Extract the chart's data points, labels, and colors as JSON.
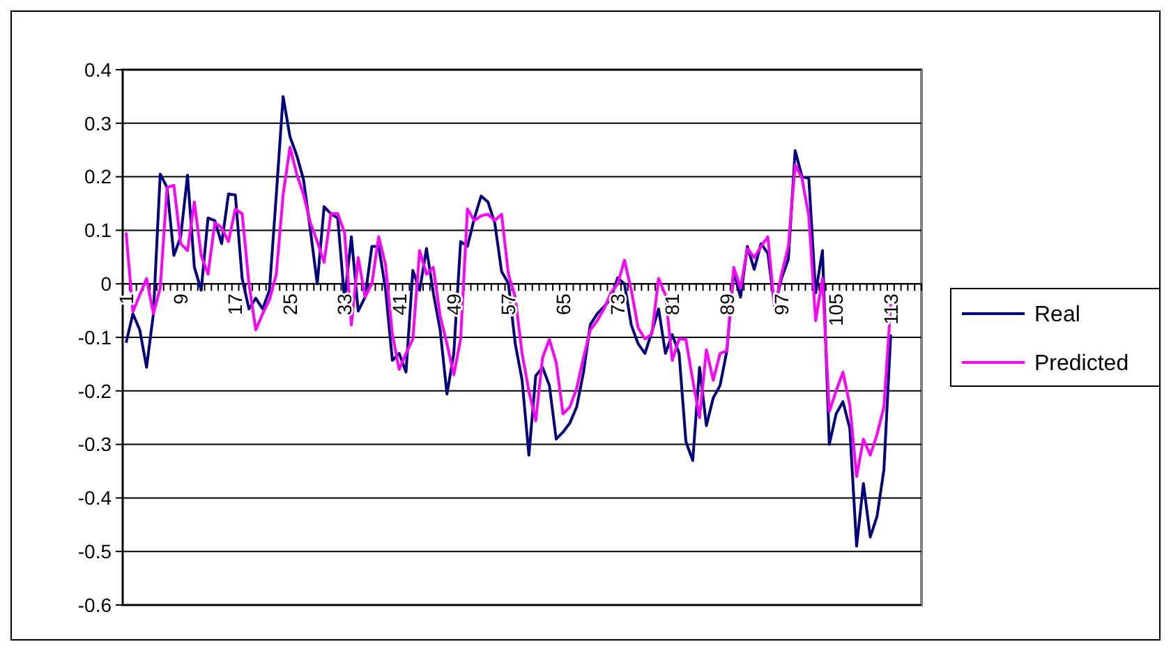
{
  "chart_data": {
    "type": "line",
    "categories": [
      "1",
      null,
      null,
      null,
      null,
      null,
      null,
      null,
      "9",
      null,
      null,
      null,
      null,
      null,
      null,
      null,
      "17",
      null,
      null,
      null,
      null,
      null,
      null,
      null,
      "25",
      null,
      null,
      null,
      null,
      null,
      null,
      null,
      "33",
      null,
      null,
      null,
      null,
      null,
      null,
      null,
      "41",
      null,
      null,
      null,
      null,
      null,
      null,
      null,
      "49",
      null,
      null,
      null,
      null,
      null,
      null,
      null,
      "57",
      null,
      null,
      null,
      null,
      null,
      null,
      null,
      "65",
      null,
      null,
      null,
      null,
      null,
      null,
      null,
      "73",
      null,
      null,
      null,
      null,
      null,
      null,
      null,
      "81",
      null,
      null,
      null,
      null,
      null,
      null,
      null,
      "89",
      null,
      null,
      null,
      null,
      null,
      null,
      null,
      "97",
      null,
      null,
      null,
      null,
      null,
      null,
      null,
      "105",
      null,
      null,
      null,
      null,
      null,
      null,
      null,
      "113",
      null,
      null,
      null,
      null
    ],
    "series": [
      {
        "name": "Real",
        "color": "#000080",
        "values": [
          -0.11,
          -0.056,
          -0.086,
          -0.156,
          -0.056,
          0.205,
          0.18,
          0.053,
          0.088,
          0.203,
          0.031,
          -0.012,
          0.123,
          0.118,
          0.075,
          0.168,
          0.166,
          0.01,
          -0.047,
          -0.027,
          -0.047,
          -0.012,
          0.166,
          0.35,
          0.275,
          0.24,
          0.194,
          0.1,
          0.0,
          0.144,
          0.131,
          0.123,
          -0.03,
          0.088,
          -0.051,
          -0.025,
          0.07,
          0.07,
          -0.01,
          -0.143,
          -0.13,
          -0.165,
          0.025,
          -0.012,
          0.066,
          -0.017,
          -0.086,
          -0.206,
          -0.13,
          0.079,
          0.07,
          0.122,
          0.164,
          0.153,
          0.114,
          0.023,
          0.001,
          -0.112,
          -0.18,
          -0.32,
          -0.172,
          -0.156,
          -0.19,
          -0.29,
          -0.277,
          -0.26,
          -0.23,
          -0.165,
          -0.076,
          -0.056,
          -0.043,
          -0.027,
          0.011,
          0.0,
          -0.077,
          -0.112,
          -0.13,
          -0.09,
          -0.047,
          -0.13,
          -0.095,
          -0.13,
          -0.295,
          -0.33,
          -0.156,
          -0.265,
          -0.213,
          -0.19,
          -0.125,
          0.023,
          -0.025,
          0.07,
          0.027,
          0.075,
          0.057,
          -0.043,
          0.01,
          0.046,
          0.249,
          0.2,
          0.197,
          -0.017,
          0.062,
          -0.3,
          -0.243,
          -0.22,
          -0.27,
          -0.49,
          -0.373,
          -0.473,
          -0.434,
          -0.347,
          -0.095,
          null,
          null,
          null,
          null
        ]
      },
      {
        "name": "Predicted",
        "color": "#ff00ff",
        "values": [
          0.096,
          -0.052,
          -0.021,
          0.01,
          -0.056,
          -0.008,
          0.18,
          0.184,
          0.075,
          0.062,
          0.153,
          0.053,
          0.018,
          0.114,
          0.105,
          0.079,
          0.14,
          0.131,
          0.0,
          -0.086,
          -0.056,
          -0.03,
          0.018,
          0.166,
          0.255,
          0.205,
          0.166,
          0.114,
          0.079,
          0.04,
          0.131,
          0.131,
          0.096,
          -0.077,
          0.049,
          -0.025,
          0.0,
          0.088,
          0.036,
          -0.094,
          -0.16,
          -0.13,
          -0.103,
          0.062,
          0.018,
          0.031,
          -0.06,
          -0.112,
          -0.17,
          -0.103,
          0.14,
          0.118,
          0.127,
          0.13,
          0.118,
          0.13,
          0.018,
          -0.025,
          -0.13,
          -0.2,
          -0.256,
          -0.138,
          -0.104,
          -0.147,
          -0.243,
          -0.23,
          -0.195,
          -0.138,
          -0.086,
          -0.069,
          -0.047,
          -0.017,
          0.0,
          0.044,
          -0.012,
          -0.082,
          -0.103,
          -0.094,
          0.01,
          -0.021,
          -0.143,
          -0.103,
          -0.104,
          -0.18,
          -0.25,
          -0.123,
          -0.18,
          -0.13,
          -0.125,
          0.031,
          -0.008,
          0.066,
          0.049,
          0.07,
          0.088,
          -0.047,
          0.018,
          0.07,
          0.222,
          0.197,
          0.127,
          -0.069,
          0.01,
          -0.239,
          -0.2,
          -0.165,
          -0.226,
          -0.36,
          -0.29,
          -0.32,
          -0.281,
          -0.23,
          -0.038,
          null,
          null,
          null,
          null
        ]
      }
    ],
    "ylim": [
      -0.6,
      0.4
    ],
    "yticks": [
      0.4,
      0.3,
      0.2,
      0.1,
      0,
      -0.1,
      -0.2,
      -0.3,
      -0.4,
      -0.5,
      -0.6
    ],
    "grid": "y",
    "legend": "right",
    "marker": "none",
    "line_style": "solid"
  }
}
